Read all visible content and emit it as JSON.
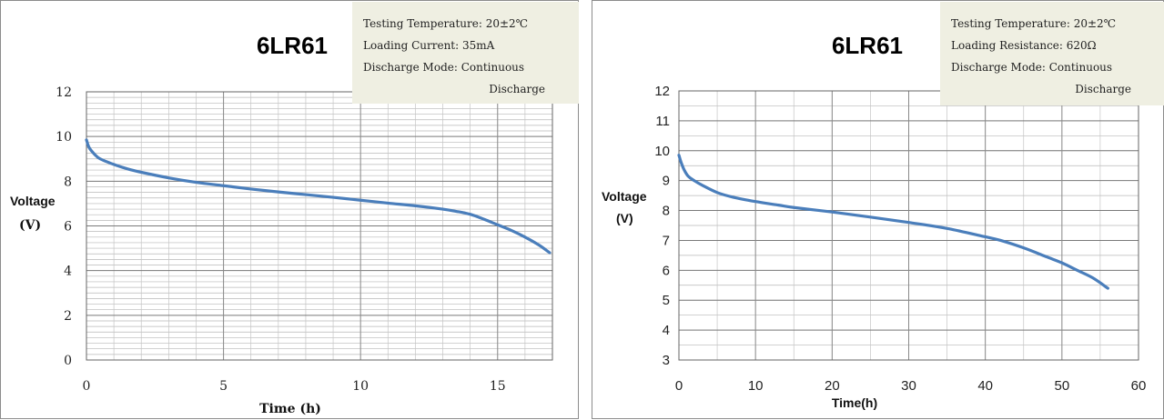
{
  "chart_data": [
    {
      "type": "line",
      "title": "6LR61",
      "xlabel": "Time (h)",
      "ylabel_line1": "Voltage",
      "ylabel_line2": "(V)",
      "xlim": [
        0,
        17
      ],
      "ylim": [
        0,
        12
      ],
      "xticks": [
        0,
        5,
        10,
        15
      ],
      "yticks": [
        0,
        2,
        4,
        6,
        8,
        10,
        12
      ],
      "grid": true,
      "info": [
        "Testing Temperature: 20±2℃",
        "Loading Current: 35mA",
        "Discharge Mode: Continuous",
        "Discharge"
      ],
      "line_color": "#4a7ebb",
      "series": [
        {
          "x": [
            0,
            0.1,
            0.3,
            0.5,
            1,
            1.5,
            2,
            3,
            4,
            5,
            6,
            7,
            8,
            9,
            10,
            11,
            12,
            13,
            13.5,
            14,
            14.5,
            15,
            15.5,
            16,
            16.5,
            16.9
          ],
          "values": [
            9.85,
            9.5,
            9.2,
            9.0,
            8.75,
            8.55,
            8.4,
            8.15,
            7.95,
            7.8,
            7.65,
            7.52,
            7.4,
            7.28,
            7.15,
            7.02,
            6.9,
            6.75,
            6.65,
            6.52,
            6.3,
            6.05,
            5.8,
            5.5,
            5.15,
            4.8
          ]
        }
      ]
    },
    {
      "type": "line",
      "title": "6LR61",
      "xlabel": "Time(h)",
      "ylabel_line1": "Voltage",
      "ylabel_line2": "(V)",
      "xlim": [
        0,
        60
      ],
      "ylim": [
        3,
        12
      ],
      "xticks": [
        0,
        10,
        20,
        30,
        40,
        50,
        60
      ],
      "yticks": [
        3,
        4,
        5,
        6,
        7,
        8,
        9,
        10,
        11,
        12
      ],
      "grid": true,
      "info": [
        "Testing Temperature: 20±2℃",
        "Loading Resistance: 620Ω",
        "Discharge Mode: Continuous",
        "Discharge"
      ],
      "line_color": "#4a7ebb",
      "series": [
        {
          "x": [
            0,
            0.3,
            0.7,
            1.2,
            2,
            3,
            5,
            7,
            10,
            13,
            15,
            20,
            25,
            30,
            35,
            40,
            42,
            45,
            48,
            50,
            52,
            54,
            56
          ],
          "values": [
            9.85,
            9.6,
            9.35,
            9.15,
            9.0,
            8.85,
            8.6,
            8.45,
            8.3,
            8.18,
            8.1,
            7.95,
            7.78,
            7.6,
            7.4,
            7.12,
            7.0,
            6.75,
            6.45,
            6.25,
            6.0,
            5.75,
            5.4
          ]
        }
      ]
    }
  ]
}
